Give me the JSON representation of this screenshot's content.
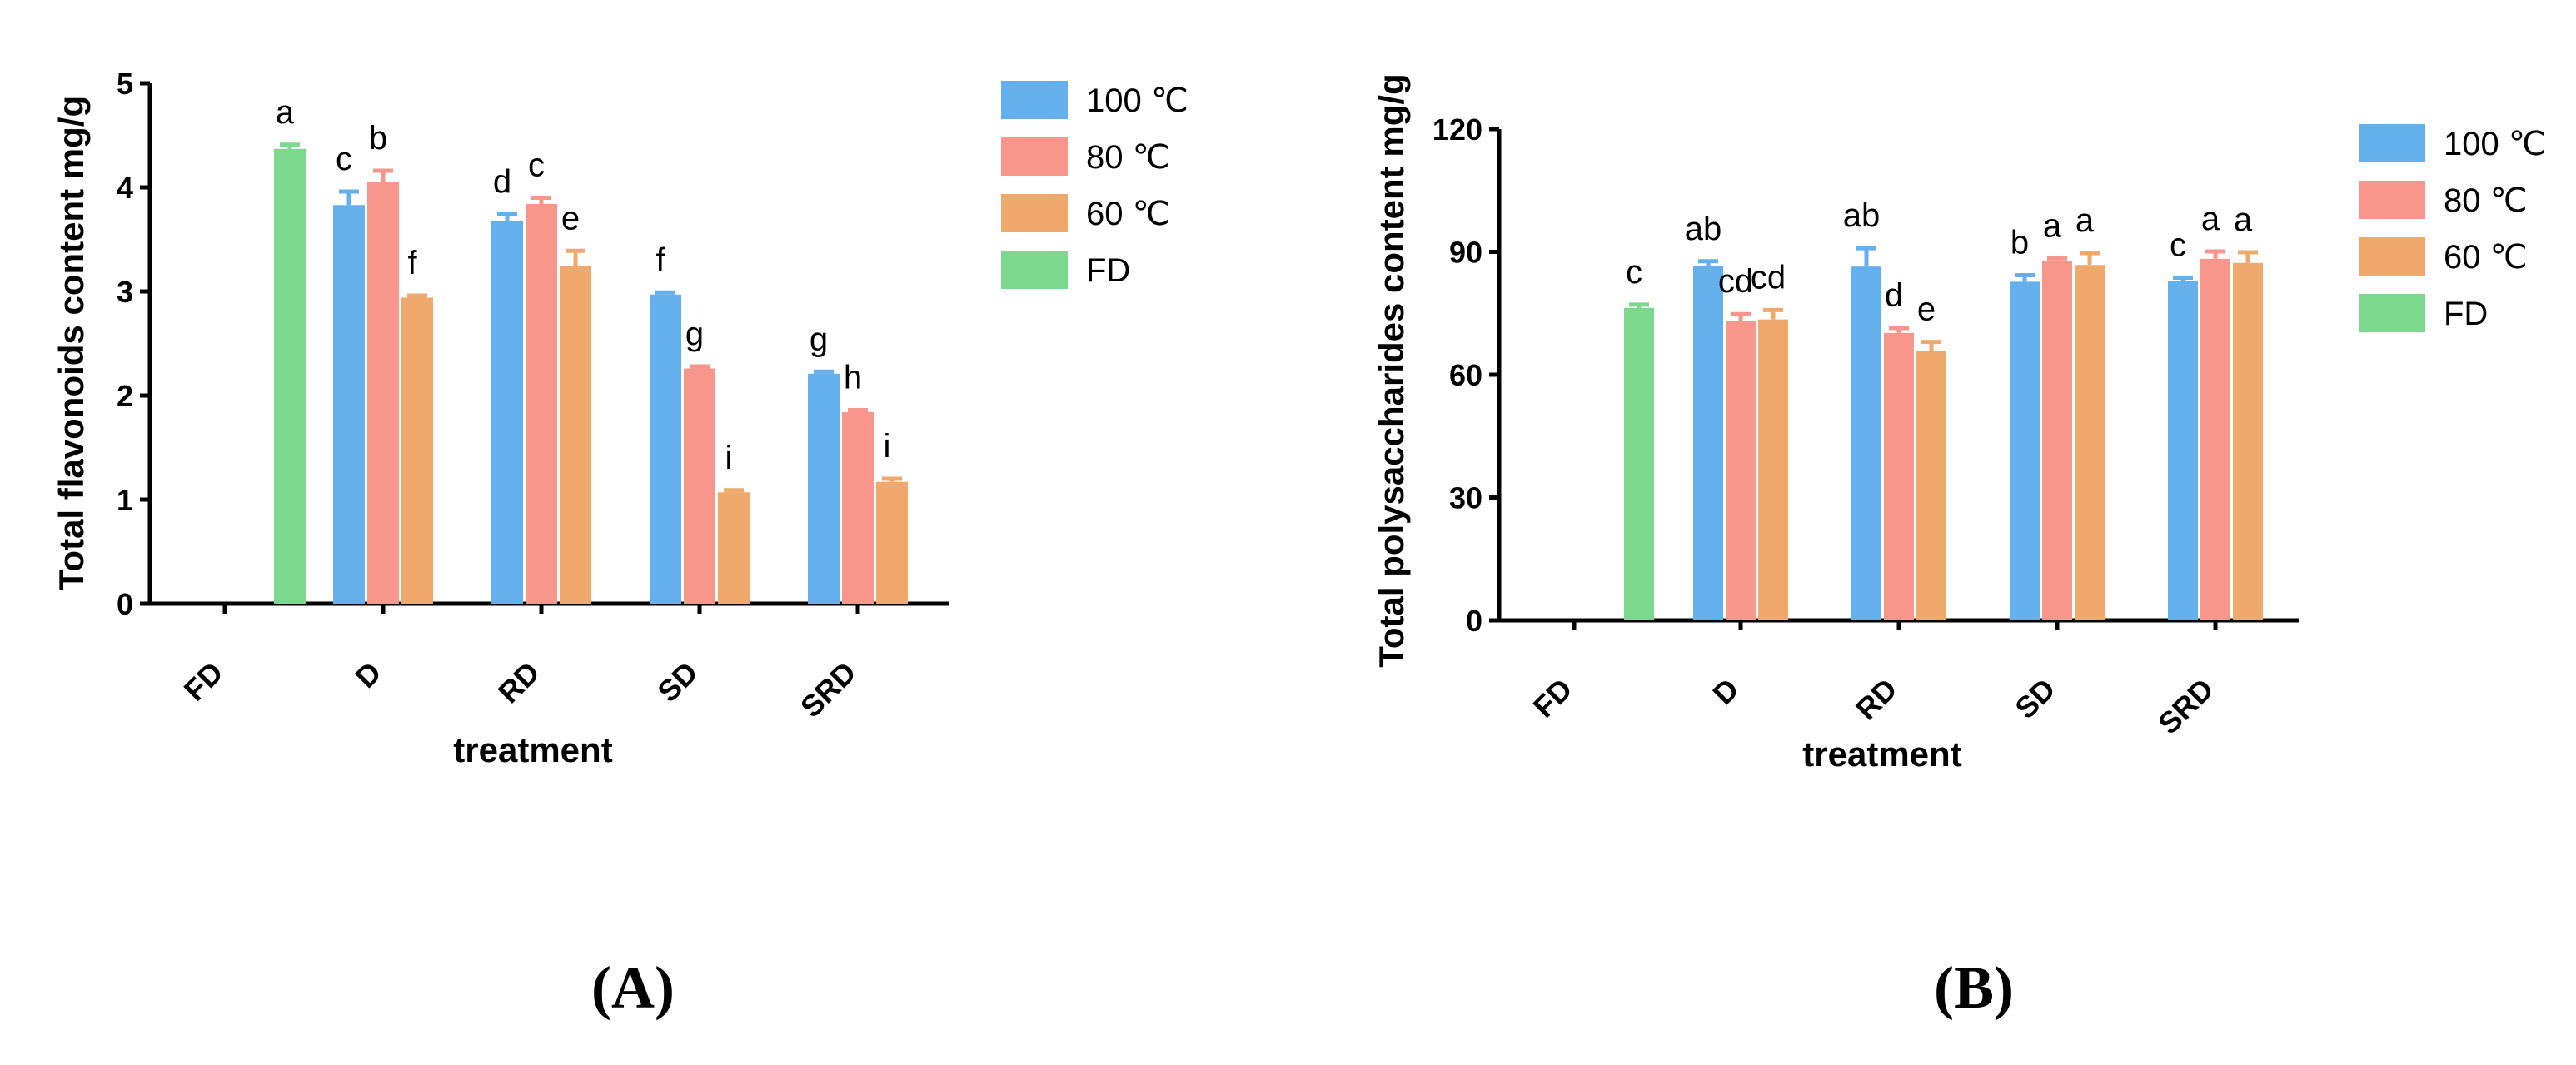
{
  "colors": {
    "100": "#64B0EC",
    "80": "#F7978B",
    "60": "#EFA96C",
    "FD": "#7BD98E",
    "axis": "#000000"
  },
  "chart_data": [
    {
      "panel_label": "(A)",
      "type": "bar",
      "ylabel": "Total flavonoids content mg/g",
      "xlabel": "treatment",
      "categories": [
        "FD",
        "D",
        "RD",
        "SD",
        "SRD"
      ],
      "ylim": [
        0,
        5
      ],
      "yticks": [
        0,
        1,
        2,
        3,
        4,
        5
      ],
      "legend": {
        "position": "top-right",
        "entries": [
          "100 ℃",
          "80 ℃",
          "60 ℃",
          "FD"
        ]
      },
      "series": [
        {
          "name": "FD",
          "color_key": "FD",
          "bars": [
            {
              "category": "FD",
              "value": 4.37,
              "err": 0.04,
              "letter": "a"
            }
          ]
        },
        {
          "name": "100 ℃",
          "color_key": "100",
          "bars": [
            {
              "category": "D",
              "value": 3.83,
              "err": 0.13,
              "letter": "c"
            },
            {
              "category": "RD",
              "value": 3.68,
              "err": 0.06,
              "letter": "d"
            },
            {
              "category": "SD",
              "value": 2.97,
              "err": 0.02,
              "letter": "f"
            },
            {
              "category": "SRD",
              "value": 2.21,
              "err": 0.02,
              "letter": "g"
            }
          ]
        },
        {
          "name": "80 ℃",
          "color_key": "80",
          "bars": [
            {
              "category": "D",
              "value": 4.05,
              "err": 0.11,
              "letter": "b"
            },
            {
              "category": "RD",
              "value": 3.84,
              "err": 0.06,
              "letter": "c"
            },
            {
              "category": "SD",
              "value": 2.26,
              "err": 0.02,
              "letter": "g"
            },
            {
              "category": "SRD",
              "value": 1.84,
              "err": 0.02,
              "letter": "h"
            }
          ]
        },
        {
          "name": "60 ℃",
          "color_key": "60",
          "bars": [
            {
              "category": "D",
              "value": 2.94,
              "err": 0.02,
              "letter": "f"
            },
            {
              "category": "RD",
              "value": 3.24,
              "err": 0.15,
              "letter": "e"
            },
            {
              "category": "SD",
              "value": 1.07,
              "err": 0.02,
              "letter": "i"
            },
            {
              "category": "SRD",
              "value": 1.17,
              "err": 0.03,
              "letter": "i"
            }
          ]
        }
      ]
    },
    {
      "panel_label": "(B)",
      "type": "bar",
      "ylabel": "Total polysaccharides content mg/g",
      "xlabel": "treatment",
      "categories": [
        "FD",
        "D",
        "RD",
        "SD",
        "SRD"
      ],
      "ylim": [
        0,
        120
      ],
      "yticks": [
        0,
        30,
        60,
        90,
        120
      ],
      "legend": {
        "position": "top-right",
        "entries": [
          "100 ℃",
          "80 ℃",
          "60 ℃",
          "FD"
        ]
      },
      "series": [
        {
          "name": "FD",
          "color_key": "FD",
          "bars": [
            {
              "category": "FD",
              "value": 76.3,
              "err": 0.8,
              "letter": "c"
            }
          ]
        },
        {
          "name": "100 ℃",
          "color_key": "100",
          "bars": [
            {
              "category": "D",
              "value": 86.5,
              "err": 1.2,
              "letter": "ab"
            },
            {
              "category": "RD",
              "value": 86.4,
              "err": 4.5,
              "letter": "ab"
            },
            {
              "category": "SD",
              "value": 82.7,
              "err": 1.6,
              "letter": "b"
            },
            {
              "category": "SRD",
              "value": 82.9,
              "err": 0.8,
              "letter": "c"
            }
          ]
        },
        {
          "name": "80 ℃",
          "color_key": "80",
          "bars": [
            {
              "category": "D",
              "value": 73.2,
              "err": 1.6,
              "letter": "cd"
            },
            {
              "category": "RD",
              "value": 70.2,
              "err": 1.2,
              "letter": "d"
            },
            {
              "category": "SD",
              "value": 87.8,
              "err": 0.6,
              "letter": "a"
            },
            {
              "category": "SRD",
              "value": 88.3,
              "err": 1.8,
              "letter": "a"
            }
          ]
        },
        {
          "name": "60 ℃",
          "color_key": "60",
          "bars": [
            {
              "category": "D",
              "value": 73.5,
              "err": 2.3,
              "letter": "cd"
            },
            {
              "category": "RD",
              "value": 65.8,
              "err": 2.2,
              "letter": "e"
            },
            {
              "category": "SD",
              "value": 86.8,
              "err": 2.9,
              "letter": "a"
            },
            {
              "category": "SRD",
              "value": 87.3,
              "err": 2.6,
              "letter": "a"
            }
          ]
        }
      ]
    }
  ]
}
